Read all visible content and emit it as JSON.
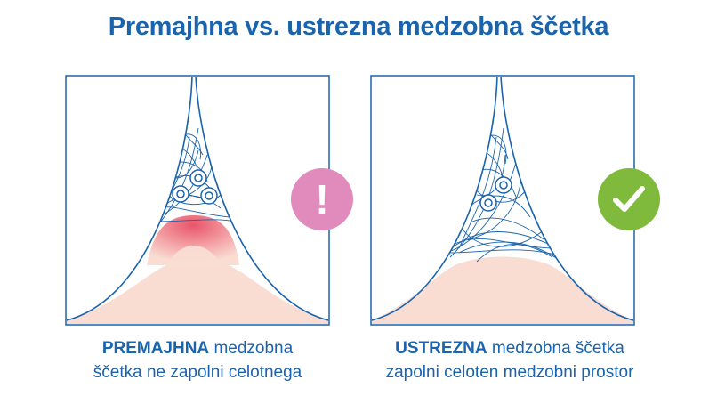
{
  "title": "Premajhna vs. ustrezna medzobna ščetka",
  "colors": {
    "title": "#1a63ad",
    "outline": "#1a63ad",
    "gum": "#f9ddd3",
    "inflamed": "#e8556b",
    "warning": "#e08bbb",
    "ok": "#7fba3d"
  },
  "left": {
    "badge_icon": "exclamation-icon",
    "badge_symbol": "!",
    "caption_bold": "PREMAJHNA",
    "caption_line1_rest": " medzobna",
    "caption_line2": "ščetka ne zapolni celotnega"
  },
  "right": {
    "badge_icon": "check-icon",
    "caption_bold": "USTREZNA",
    "caption_line1_rest": " medzobna ščetka",
    "caption_line2": "zapolni celoten medzobni prostor"
  }
}
